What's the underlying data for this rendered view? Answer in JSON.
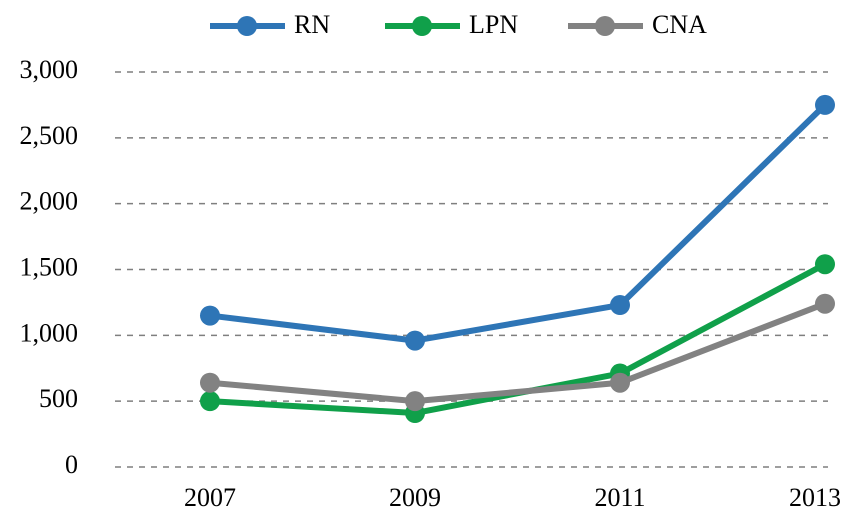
{
  "chart_data": {
    "type": "line",
    "categories": [
      "2007",
      "2009",
      "2011",
      "2013"
    ],
    "series": [
      {
        "name": "RN",
        "color": "#2e75b6",
        "values": [
          1150,
          960,
          1230,
          2750
        ]
      },
      {
        "name": "LPN",
        "color": "#10a04a",
        "values": [
          500,
          410,
          710,
          1540
        ]
      },
      {
        "name": "CNA",
        "color": "#828282",
        "values": [
          640,
          500,
          640,
          1240
        ]
      }
    ],
    "ylim": [
      0,
      3000
    ],
    "yticks": [
      0,
      500,
      {
        "value": 1000,
        "label": "1,000"
      },
      {
        "value": 1500,
        "label": "1,500"
      },
      {
        "value": 2000,
        "label": "2,000"
      },
      {
        "value": 2500,
        "label": "2,500"
      },
      {
        "value": 3000,
        "label": "3,000"
      }
    ],
    "grid": true,
    "legend": "top"
  }
}
